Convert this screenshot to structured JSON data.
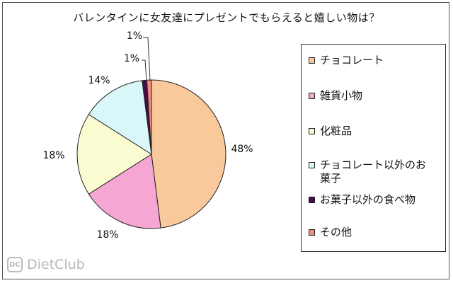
{
  "chart_data": {
    "type": "pie",
    "title": "バレンタインに女友達にプレゼントでもらえると嬉しい物は？",
    "categories": [
      "チョコレート",
      "雑貨小物",
      "化粧品",
      "チョコレート以外のお菓子",
      "お菓子以外の食べ物",
      "その他"
    ],
    "values": [
      48,
      18,
      18,
      14,
      1,
      1
    ],
    "data_labels": [
      "48%",
      "18%",
      "18%",
      "14%",
      "1%",
      "1%"
    ],
    "legend_position": "right",
    "colors": [
      "#f9c89b",
      "#f5a6d3",
      "#fbfbd2",
      "#d9f6f9",
      "#4a0a45",
      "#ef8c7e"
    ]
  },
  "legend_lines": [
    [
      "チョコレート"
    ],
    [
      "雑貨小物"
    ],
    [
      "化粧品"
    ],
    [
      "チョコレート以外のお",
      "菓子"
    ],
    [
      "お菓子以外の食べ物"
    ],
    [
      "その他"
    ]
  ],
  "watermark": {
    "logo_icon": "dietclub-logo-icon",
    "text": "DietClub"
  }
}
